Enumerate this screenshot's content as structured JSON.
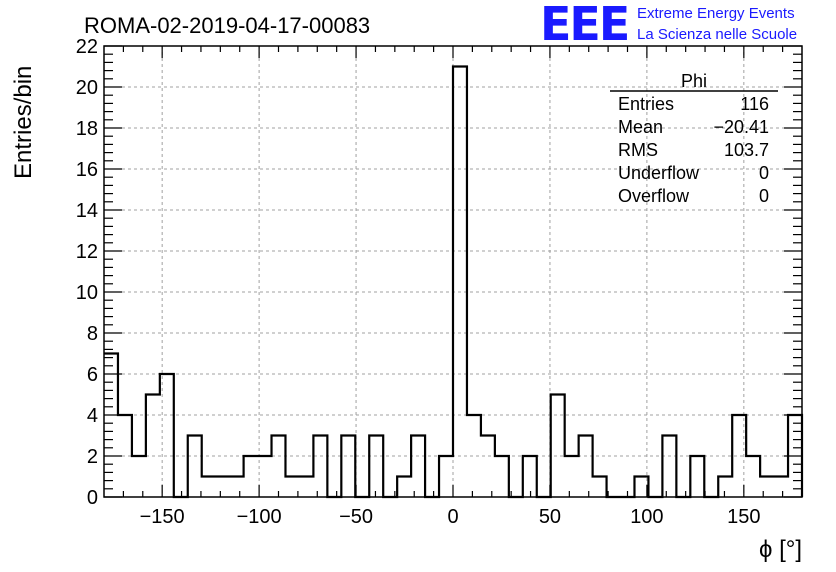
{
  "header": {
    "run_title": "ROMA-02-2019-04-17-00083",
    "logo_text": "EEE",
    "logo_line1": "Extreme Energy Events",
    "logo_line2": "La Scienza nelle Scuole"
  },
  "stats_box": {
    "title": "Phi",
    "rows": [
      {
        "label": "Entries",
        "value": "116"
      },
      {
        "label": "Mean",
        "value": "−20.41"
      },
      {
        "label": "RMS",
        "value": "103.7"
      },
      {
        "label": "Underflow",
        "value": "0"
      },
      {
        "label": "Overflow",
        "value": "0"
      }
    ]
  },
  "chart_data": {
    "type": "bar",
    "title": "ROMA-02-2019-04-17-00083",
    "xlabel": "ϕ [°]",
    "ylabel": "Entries/bin",
    "xlim": [
      -180,
      180
    ],
    "ylim": [
      0,
      22
    ],
    "bin_width": 7.2,
    "bin_edges_start": -180,
    "x_ticks": [
      -150,
      -100,
      -50,
      0,
      50,
      100,
      150
    ],
    "x_tick_labels": [
      "−150",
      "−100",
      "−50",
      "0",
      "50",
      "100",
      "150"
    ],
    "y_ticks": [
      0,
      2,
      4,
      6,
      8,
      10,
      12,
      14,
      16,
      18,
      20,
      22
    ],
    "grid": true,
    "series": [
      {
        "values": [
          7,
          4,
          2,
          5,
          6,
          0,
          3,
          1,
          1,
          1,
          2,
          2,
          3,
          1,
          1,
          3,
          0,
          3,
          0,
          3,
          0,
          1,
          3,
          0,
          2,
          21,
          4,
          3,
          2,
          0,
          2,
          0,
          5,
          2,
          3,
          1,
          0,
          0,
          1,
          0,
          3,
          0,
          2,
          0,
          1,
          4,
          2,
          1,
          1,
          4
        ]
      }
    ]
  }
}
